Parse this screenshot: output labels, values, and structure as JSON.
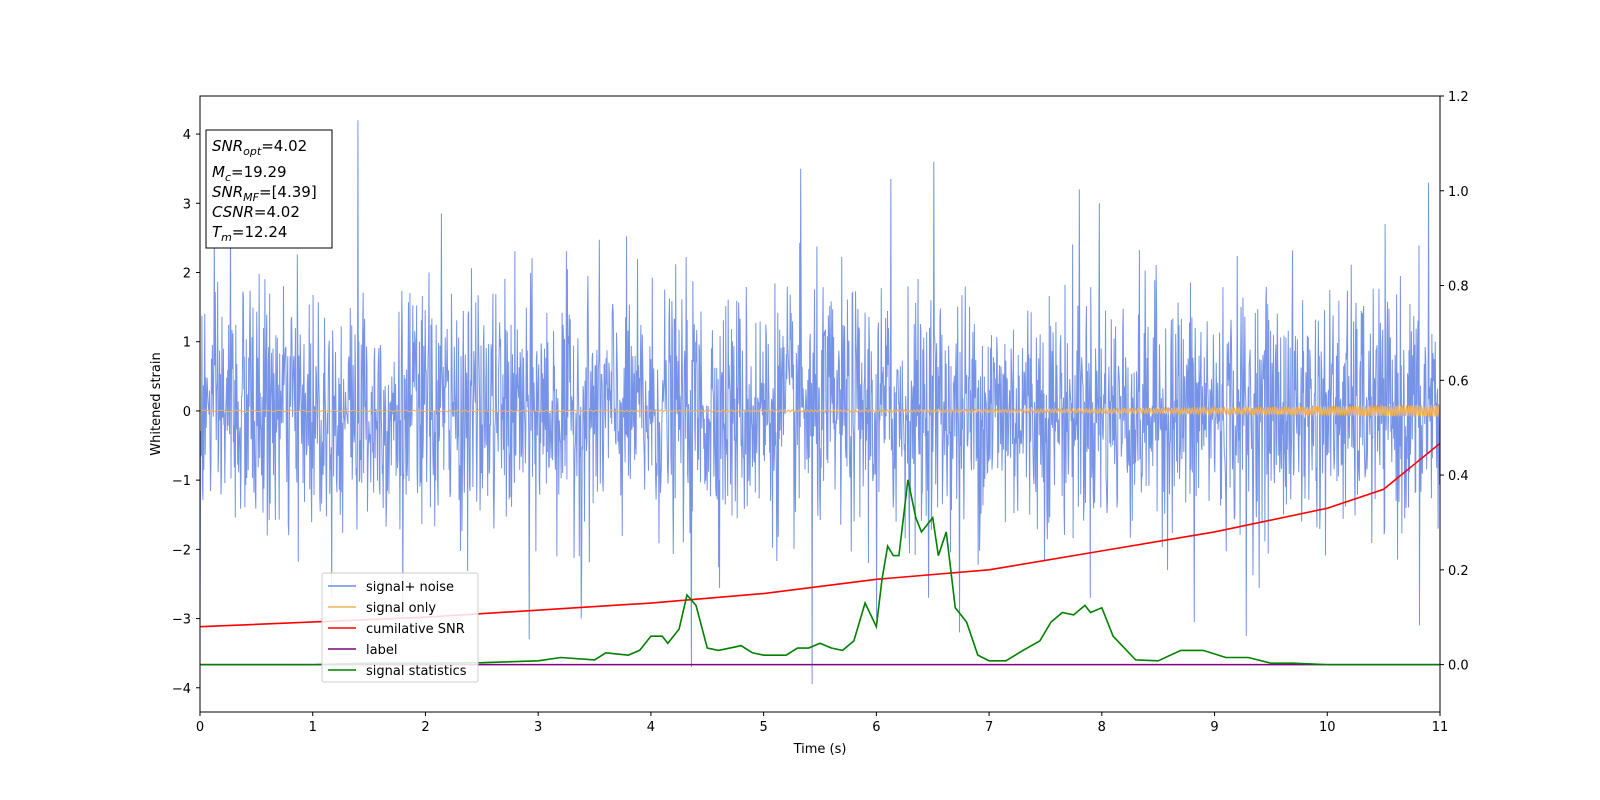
{
  "chart_data": {
    "type": "line",
    "xlabel": "Time (s)",
    "ylabel": "Whitened strain",
    "xlim": [
      0,
      11
    ],
    "ylim": [
      -4.35,
      4.55
    ],
    "y2lim": [
      -0.1,
      1.2
    ],
    "x_ticks": [
      "0",
      "1",
      "2",
      "3",
      "4",
      "5",
      "6",
      "7",
      "8",
      "9",
      "10",
      "11"
    ],
    "y_ticks": [
      "−4",
      "−3",
      "−2",
      "−1",
      "0",
      "1",
      "2",
      "3",
      "4"
    ],
    "y2_ticks": [
      "0.0",
      "0.2",
      "0.4",
      "0.6",
      "0.8",
      "1.0",
      "1.2"
    ],
    "legend_position": "lower-left",
    "info_box": {
      "snr_opt": {
        "base": "SNR",
        "sub": "opt",
        "value": "=4.02"
      },
      "mc": {
        "base": "M",
        "sub": "c",
        "value": "=19.29"
      },
      "snr_mf": {
        "base": "SNR",
        "sub": "MF",
        "value": "=[4.39]"
      },
      "csnr": {
        "base": "CSNR",
        "value": "=4.02"
      },
      "tm": {
        "base": "T",
        "sub": "m",
        "value": "=12.24"
      }
    },
    "series": [
      {
        "name": "signal+ noise",
        "axis": "left",
        "color": "#6f8de6",
        "style": "noise",
        "noise_sigma": 0.85,
        "spikes": [
          {
            "x": 1.4,
            "y": 4.2
          },
          {
            "x": 5.33,
            "y": 3.5
          },
          {
            "x": 5.43,
            "y": -3.95
          },
          {
            "x": 6.51,
            "y": 3.6
          },
          {
            "x": 6.13,
            "y": 3.35
          },
          {
            "x": 4.36,
            "y": -3.7
          },
          {
            "x": 10.9,
            "y": 3.3
          },
          {
            "x": 0.27,
            "y": 2.9
          },
          {
            "x": 2.14,
            "y": 2.85
          },
          {
            "x": 1.8,
            "y": -3.0
          },
          {
            "x": 2.92,
            "y": -3.3
          },
          {
            "x": 7.8,
            "y": 3.2
          },
          {
            "x": 8.82,
            "y": -3.05
          },
          {
            "x": 10.82,
            "y": -3.1
          },
          {
            "x": 3.38,
            "y": -3.0
          },
          {
            "x": 6.74,
            "y": -3.2
          },
          {
            "x": 9.28,
            "y": -3.25
          },
          {
            "x": 0.0,
            "y": -3.1
          },
          {
            "x": 6.0,
            "y": -3.0
          },
          {
            "x": 7.98,
            "y": 3.0
          }
        ]
      },
      {
        "name": "signal only",
        "axis": "left",
        "color": "#f2b35a",
        "style": "chirp",
        "start_amplitude": 0.01,
        "end_amplitude": 0.09
      },
      {
        "name": "cumilative SNR",
        "axis": "right",
        "color": "#ff0000",
        "style": "curve",
        "points": [
          [
            0,
            0.08
          ],
          [
            2,
            0.1
          ],
          [
            4,
            0.13
          ],
          [
            5,
            0.15
          ],
          [
            6,
            0.18
          ],
          [
            7,
            0.2
          ],
          [
            8,
            0.24
          ],
          [
            9,
            0.28
          ],
          [
            10,
            0.33
          ],
          [
            10.5,
            0.37
          ],
          [
            11,
            0.467
          ]
        ]
      },
      {
        "name": "label",
        "axis": "right",
        "color": "#800080",
        "style": "constant",
        "value": 0.0
      },
      {
        "name": "signal statistics",
        "axis": "right",
        "color": "#008000",
        "style": "curve",
        "points": [
          [
            0,
            0.0
          ],
          [
            0.5,
            0.0
          ],
          [
            1,
            0.0
          ],
          [
            1.5,
            0.003
          ],
          [
            2,
            0.003
          ],
          [
            2.5,
            0.004
          ],
          [
            3,
            0.008
          ],
          [
            3.2,
            0.015
          ],
          [
            3.5,
            0.01
          ],
          [
            3.6,
            0.025
          ],
          [
            3.8,
            0.02
          ],
          [
            3.9,
            0.03
          ],
          [
            4.0,
            0.06
          ],
          [
            4.1,
            0.06
          ],
          [
            4.15,
            0.045
          ],
          [
            4.25,
            0.075
          ],
          [
            4.32,
            0.147
          ],
          [
            4.4,
            0.125
          ],
          [
            4.45,
            0.08
          ],
          [
            4.5,
            0.035
          ],
          [
            4.6,
            0.03
          ],
          [
            4.7,
            0.035
          ],
          [
            4.8,
            0.04
          ],
          [
            4.9,
            0.025
          ],
          [
            5.0,
            0.02
          ],
          [
            5.2,
            0.02
          ],
          [
            5.3,
            0.035
          ],
          [
            5.4,
            0.035
          ],
          [
            5.5,
            0.045
          ],
          [
            5.6,
            0.035
          ],
          [
            5.7,
            0.03
          ],
          [
            5.8,
            0.05
          ],
          [
            5.9,
            0.13
          ],
          [
            6.0,
            0.08
          ],
          [
            6.05,
            0.18
          ],
          [
            6.1,
            0.25
          ],
          [
            6.15,
            0.23
          ],
          [
            6.2,
            0.23
          ],
          [
            6.28,
            0.39
          ],
          [
            6.35,
            0.31
          ],
          [
            6.4,
            0.28
          ],
          [
            6.5,
            0.31
          ],
          [
            6.55,
            0.23
          ],
          [
            6.62,
            0.28
          ],
          [
            6.7,
            0.12
          ],
          [
            6.8,
            0.09
          ],
          [
            6.9,
            0.02
          ],
          [
            7.0,
            0.008
          ],
          [
            7.15,
            0.008
          ],
          [
            7.3,
            0.03
          ],
          [
            7.45,
            0.05
          ],
          [
            7.55,
            0.09
          ],
          [
            7.65,
            0.11
          ],
          [
            7.75,
            0.105
          ],
          [
            7.85,
            0.125
          ],
          [
            7.9,
            0.11
          ],
          [
            8.0,
            0.12
          ],
          [
            8.1,
            0.06
          ],
          [
            8.3,
            0.01
          ],
          [
            8.5,
            0.008
          ],
          [
            8.7,
            0.03
          ],
          [
            8.9,
            0.03
          ],
          [
            9.1,
            0.015
          ],
          [
            9.3,
            0.015
          ],
          [
            9.5,
            0.003
          ],
          [
            9.7,
            0.003
          ],
          [
            10.0,
            0.0
          ],
          [
            11,
            0.0
          ]
        ]
      }
    ]
  }
}
